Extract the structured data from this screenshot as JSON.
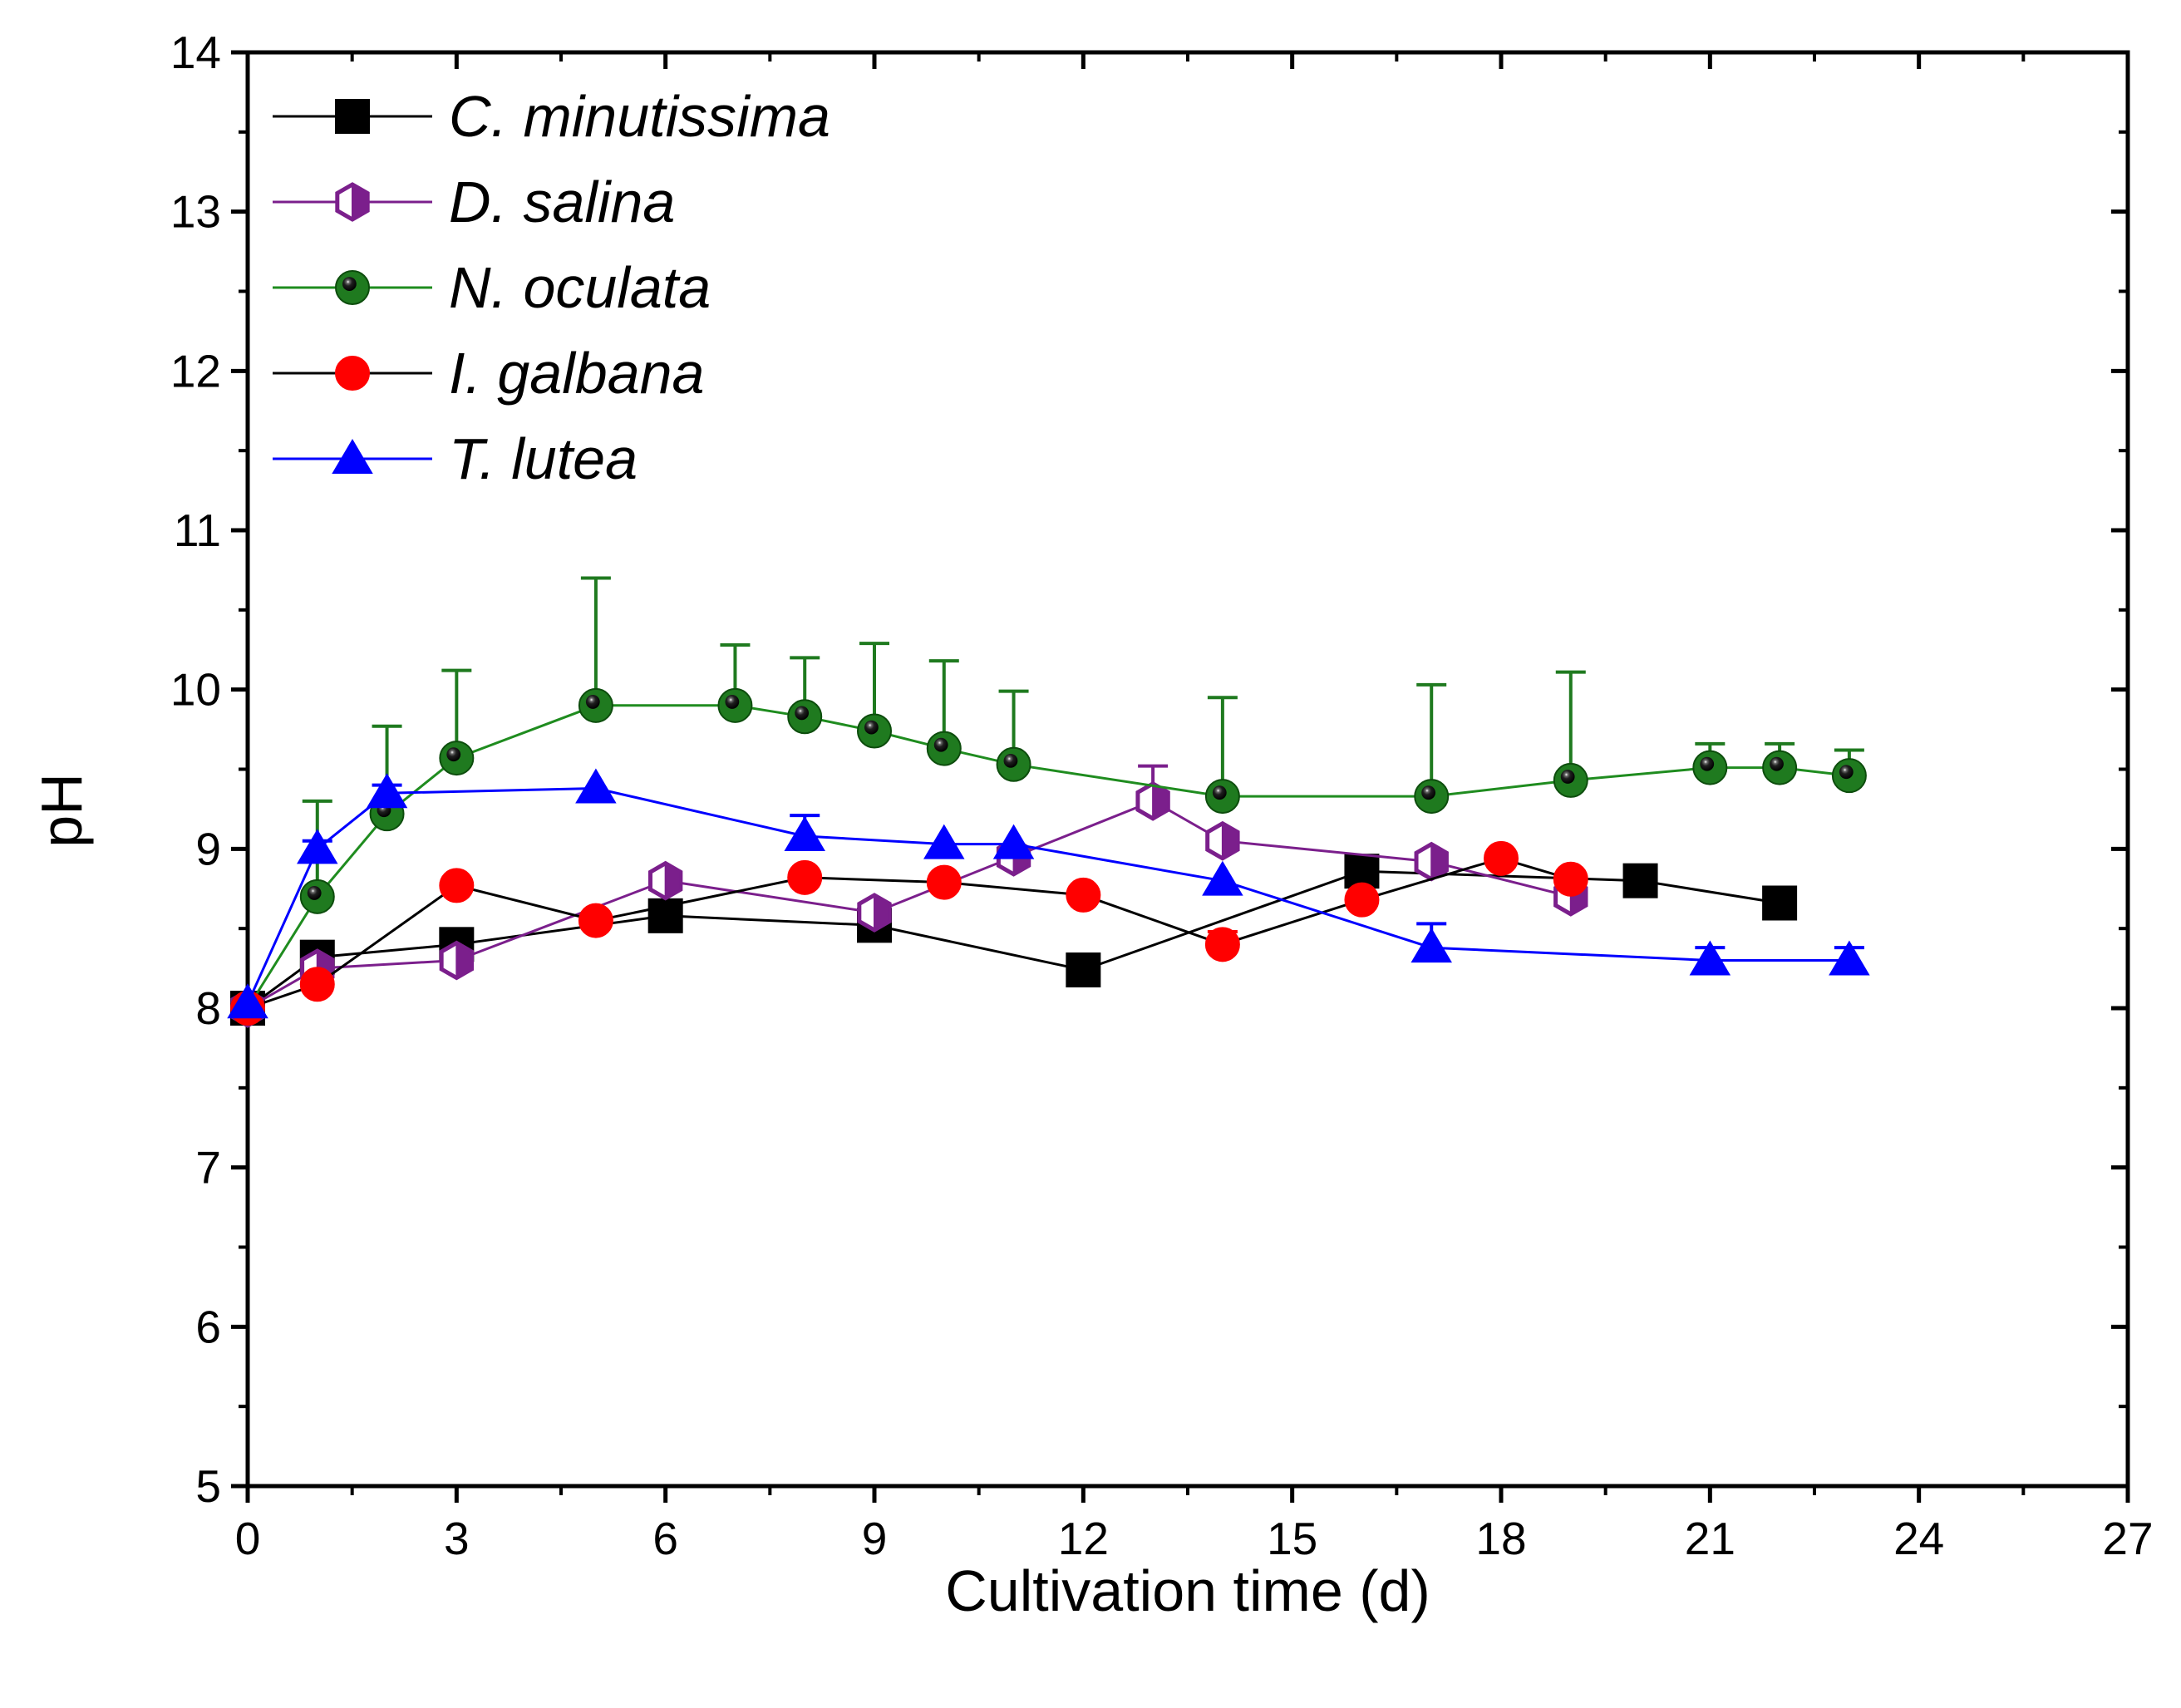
{
  "chart_data": {
    "type": "line",
    "title": "",
    "xlabel": "Cultivation time (d)",
    "ylabel": "pH",
    "xlim": [
      0,
      27
    ],
    "ylim": [
      5,
      14
    ],
    "xticks": [
      0,
      3,
      6,
      9,
      12,
      15,
      18,
      21,
      24,
      27
    ],
    "yticks": [
      5,
      6,
      7,
      8,
      9,
      10,
      11,
      12,
      13,
      14
    ],
    "grid": false,
    "legend_position": "top-left",
    "series": [
      {
        "name": "C. minutissima",
        "color": "#000000",
        "line_color": "#000000",
        "marker": "square",
        "points": [
          {
            "x": 0,
            "y": 8.0
          },
          {
            "x": 1,
            "y": 8.32
          },
          {
            "x": 3,
            "y": 8.4
          },
          {
            "x": 6,
            "y": 8.58
          },
          {
            "x": 9,
            "y": 8.52
          },
          {
            "x": 12,
            "y": 8.24
          },
          {
            "x": 16,
            "y": 8.86
          },
          {
            "x": 20,
            "y": 8.8
          },
          {
            "x": 22,
            "y": 8.66
          }
        ]
      },
      {
        "name": "D. salina",
        "color": "#7b1f8c",
        "line_color": "#7b1f8c",
        "marker": "half-hexagon",
        "points": [
          {
            "x": 0,
            "y": 8.0
          },
          {
            "x": 1,
            "y": 8.25
          },
          {
            "x": 3,
            "y": 8.3
          },
          {
            "x": 6,
            "y": 8.8
          },
          {
            "x": 9,
            "y": 8.6
          },
          {
            "x": 11,
            "y": 8.95
          },
          {
            "x": 13,
            "y": 9.3,
            "err": 0.22
          },
          {
            "x": 14,
            "y": 9.05
          },
          {
            "x": 17,
            "y": 8.92
          },
          {
            "x": 19,
            "y": 8.7
          }
        ]
      },
      {
        "name": "N. oculata",
        "color": "#1f7a1f",
        "line_color": "#1f8c1f",
        "marker": "sphere",
        "points": [
          {
            "x": 0,
            "y": 8.0
          },
          {
            "x": 1,
            "y": 8.7,
            "err": 0.6
          },
          {
            "x": 2,
            "y": 9.22,
            "err": 0.55
          },
          {
            "x": 3,
            "y": 9.57,
            "err": 0.55
          },
          {
            "x": 5,
            "y": 9.9,
            "err": 0.8
          },
          {
            "x": 7,
            "y": 9.9,
            "err": 0.38
          },
          {
            "x": 8,
            "y": 9.83,
            "err": 0.37
          },
          {
            "x": 9,
            "y": 9.74,
            "err": 0.55
          },
          {
            "x": 10,
            "y": 9.63,
            "err": 0.55
          },
          {
            "x": 11,
            "y": 9.53,
            "err": 0.46
          },
          {
            "x": 14,
            "y": 9.33,
            "err": 0.62
          },
          {
            "x": 17,
            "y": 9.33,
            "err": 0.7
          },
          {
            "x": 19,
            "y": 9.43,
            "err": 0.68
          },
          {
            "x": 21,
            "y": 9.51,
            "err": 0.15
          },
          {
            "x": 22,
            "y": 9.51,
            "err": 0.15
          },
          {
            "x": 23,
            "y": 9.46,
            "err": 0.16
          }
        ]
      },
      {
        "name": "I. galbana",
        "color": "#ff0000",
        "line_color": "#000000",
        "marker": "circle",
        "points": [
          {
            "x": 0,
            "y": 8.0
          },
          {
            "x": 1,
            "y": 8.15
          },
          {
            "x": 3,
            "y": 8.77
          },
          {
            "x": 5,
            "y": 8.55
          },
          {
            "x": 8,
            "y": 8.82
          },
          {
            "x": 10,
            "y": 8.79
          },
          {
            "x": 12,
            "y": 8.71
          },
          {
            "x": 14,
            "y": 8.4,
            "err": 0.08
          },
          {
            "x": 16,
            "y": 8.68
          },
          {
            "x": 18,
            "y": 8.94
          },
          {
            "x": 19,
            "y": 8.81
          }
        ]
      },
      {
        "name": "T. lutea",
        "color": "#0000ff",
        "line_color": "#0000ff",
        "marker": "triangle",
        "points": [
          {
            "x": 0,
            "y": 8.03
          },
          {
            "x": 1,
            "y": 9.0,
            "err": 0.05
          },
          {
            "x": 2,
            "y": 9.35,
            "err": 0.05
          },
          {
            "x": 5,
            "y": 9.38
          },
          {
            "x": 8,
            "y": 9.08,
            "err": 0.13
          },
          {
            "x": 10,
            "y": 9.03
          },
          {
            "x": 11,
            "y": 9.03
          },
          {
            "x": 14,
            "y": 8.8
          },
          {
            "x": 17,
            "y": 8.38,
            "err": 0.15
          },
          {
            "x": 21,
            "y": 8.3,
            "err": 0.08
          },
          {
            "x": 23,
            "y": 8.3,
            "err": 0.08
          }
        ]
      }
    ]
  }
}
